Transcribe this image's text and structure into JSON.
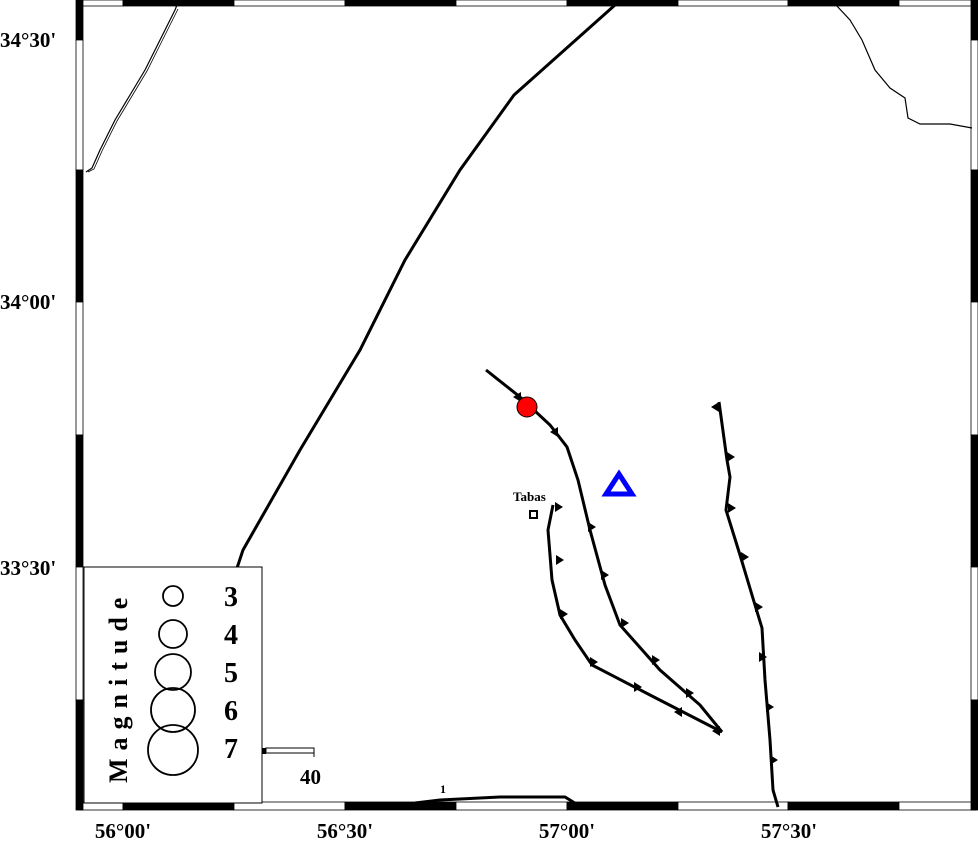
{
  "map": {
    "x_ticks": [
      "56°00'",
      "56°30'",
      "57°00'",
      "57°30'"
    ],
    "y_ticks": [
      "34°30'",
      "34°00'",
      "33°30'"
    ],
    "city": {
      "name": "Tabas"
    },
    "epicenter_color": "#ff0000",
    "station_color": "#0000ff",
    "scale_bar": {
      "label": "40"
    },
    "legend": {
      "title": "Magnitude",
      "items": [
        "3",
        "4",
        "5",
        "6",
        "7"
      ]
    },
    "fault_label": "1"
  }
}
